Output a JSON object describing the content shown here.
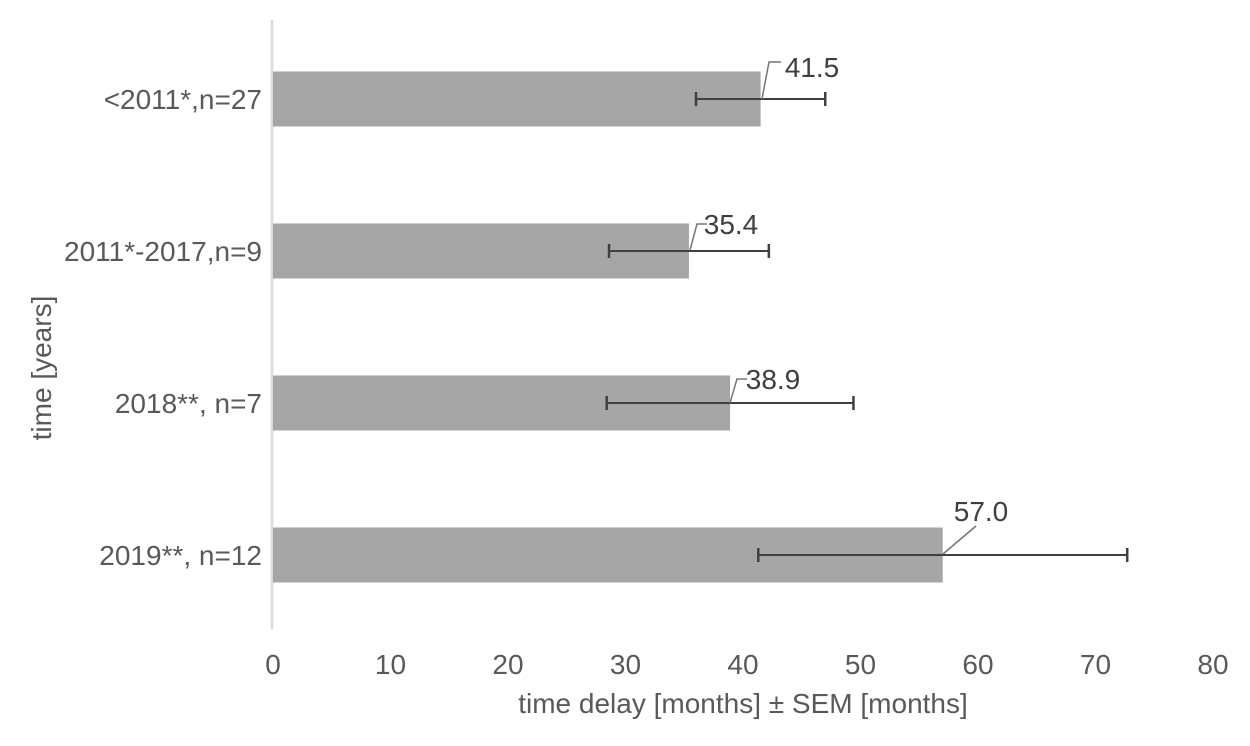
{
  "chart_data": {
    "type": "bar",
    "orientation": "horizontal",
    "title": "",
    "xlabel": "time delay [months] ± SEM [months]",
    "ylabel": "time [years]",
    "categories": [
      "<2011*,n=27",
      "2011*-2017,n=9",
      "2018**, n=7",
      "2019**, n=12"
    ],
    "values": [
      41.5,
      35.4,
      38.9,
      57.0
    ],
    "sem": [
      5.5,
      6.8,
      10.5,
      15.7
    ],
    "data_labels": [
      "41.5",
      "35.4",
      "38.9",
      "57.0"
    ],
    "xlim": [
      0,
      80
    ],
    "xticks": [
      0,
      10,
      20,
      30,
      40,
      50,
      60,
      70,
      80
    ],
    "grid": false,
    "legend": false,
    "colors": {
      "bar_fill": "#a6a6a6",
      "error_bar": "#404040",
      "axis_line": "#d9d9d9",
      "data_label_text": "#3f3f3f",
      "axis_text": "#595959",
      "leader_line": "#757575"
    }
  }
}
